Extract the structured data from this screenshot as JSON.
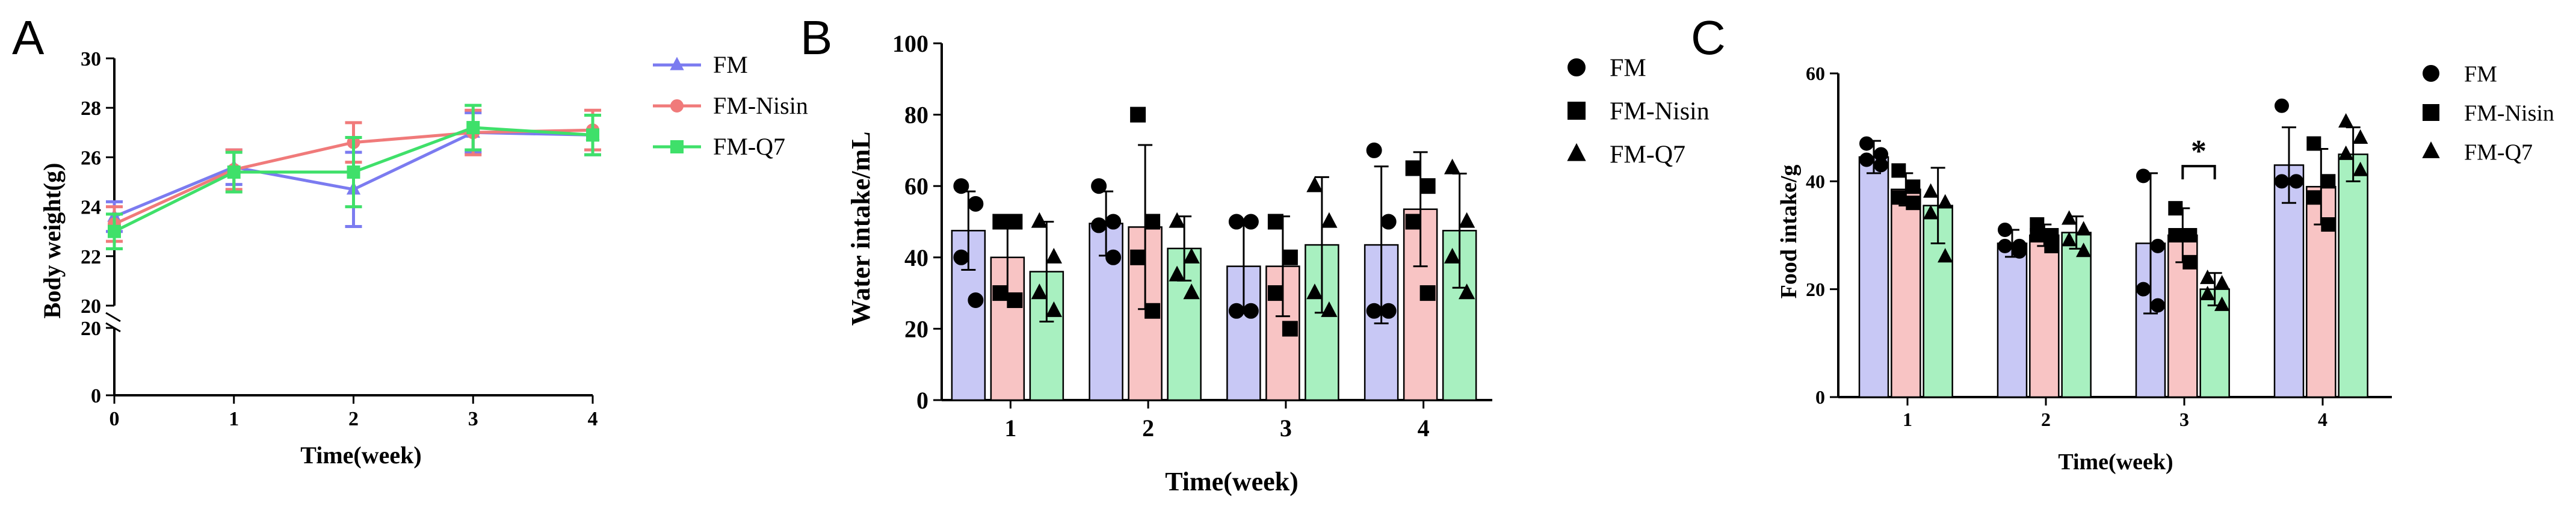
{
  "colors": {
    "FM": "#7b7bf0",
    "FM_Nisin": "#f07a7a",
    "FM_Q7": "#3fe06a",
    "FM_bar": "#c8c8f5",
    "FM_Nisin_bar": "#f8c4c4",
    "FM_Q7_bar": "#a8f0c0"
  },
  "chart_data": [
    {
      "panel": "A",
      "type": "line",
      "xlabel": "Time(week)",
      "ylabel": "Body weight(g)",
      "x": [
        0,
        1,
        2,
        3,
        4
      ],
      "x_ticks": [
        "0",
        "1",
        "2",
        "3",
        "4"
      ],
      "y_ticks_upper": [
        "20",
        "22",
        "24",
        "26",
        "28",
        "30"
      ],
      "y_ticks_lower": [
        "0",
        "20"
      ],
      "ylim_upper": [
        20,
        30
      ],
      "ylim_lower": [
        0,
        20
      ],
      "series": [
        {
          "name": "FM",
          "marker": "triangle",
          "values": [
            23.6,
            25.6,
            24.7,
            27.0,
            26.9
          ],
          "err": [
            0.6,
            0.7,
            1.5,
            0.8,
            0.8
          ]
        },
        {
          "name": "FM-Nisin",
          "marker": "circle",
          "values": [
            23.3,
            25.5,
            26.6,
            27.0,
            27.1
          ],
          "err": [
            0.7,
            0.8,
            0.8,
            0.9,
            0.8
          ]
        },
        {
          "name": "FM-Q7",
          "marker": "square",
          "values": [
            23.0,
            25.4,
            25.4,
            27.2,
            26.9
          ],
          "err": [
            0.7,
            0.8,
            1.4,
            0.9,
            0.8
          ]
        }
      ]
    },
    {
      "panel": "B",
      "type": "bar",
      "xlabel": "Time(week)",
      "ylabel": "Water intake/mL",
      "categories": [
        "1",
        "2",
        "3",
        "4"
      ],
      "y_ticks": [
        "0",
        "20",
        "40",
        "60",
        "80",
        "100"
      ],
      "ylim": [
        0,
        100
      ],
      "series": [
        {
          "name": "FM",
          "marker": "circle",
          "values": [
            47.5,
            49.5,
            37.5,
            43.5
          ],
          "err": [
            11,
            9,
            13,
            22
          ],
          "points": [
            [
              60,
              55,
              40,
              28
            ],
            [
              60,
              50,
              49,
              40
            ],
            [
              50,
              50,
              25,
              25
            ],
            [
              70,
              50,
              25,
              25
            ]
          ]
        },
        {
          "name": "FM-Nisin",
          "marker": "square",
          "values": [
            40,
            48.5,
            37.5,
            53.5
          ],
          "err": [
            11,
            23,
            14,
            16
          ],
          "points": [
            [
              50,
              50,
              30,
              28
            ],
            [
              80,
              50,
              40,
              25
            ],
            [
              50,
              40,
              30,
              20
            ],
            [
              65,
              60,
              50,
              30
            ]
          ]
        },
        {
          "name": "FM-Q7",
          "marker": "triangle",
          "values": [
            36,
            42.5,
            43.5,
            47.5
          ],
          "err": [
            14,
            9,
            19,
            16
          ],
          "points": [
            [
              50,
              40,
              30,
              25
            ],
            [
              50,
              40,
              35,
              30
            ],
            [
              60,
              50,
              30,
              25
            ],
            [
              65,
              50,
              40,
              30
            ]
          ]
        }
      ]
    },
    {
      "panel": "C",
      "type": "bar",
      "xlabel": "Time(week)",
      "ylabel": "Food intake/g",
      "categories": [
        "1",
        "2",
        "3",
        "4"
      ],
      "y_ticks": [
        "0",
        "20",
        "40",
        "60"
      ],
      "ylim": [
        0,
        60
      ],
      "significance": {
        "category": "3",
        "between": [
          "FM-Nisin",
          "FM-Q7"
        ],
        "label": "*"
      },
      "series": [
        {
          "name": "FM",
          "marker": "circle",
          "values": [
            44.5,
            28.5,
            28.5,
            43
          ],
          "err": [
            3,
            2.5,
            13,
            7
          ],
          "points": [
            [
              47,
              45,
              44,
              43
            ],
            [
              31,
              28,
              28,
              27
            ],
            [
              41,
              28,
              20,
              17
            ],
            [
              54,
              40,
              40,
              40
            ]
          ]
        },
        {
          "name": "FM-Nisin",
          "marker": "square",
          "values": [
            38.5,
            30,
            30,
            39
          ],
          "err": [
            3,
            2,
            5,
            7
          ],
          "points": [
            [
              42,
              39,
              37,
              36
            ],
            [
              32,
              30,
              30,
              28
            ],
            [
              35,
              30,
              30,
              25
            ],
            [
              47,
              40,
              37,
              32
            ]
          ]
        },
        {
          "name": "FM-Q7",
          "marker": "triangle",
          "values": [
            35.5,
            30.5,
            20,
            45
          ],
          "err": [
            7,
            3,
            3,
            5
          ],
          "points": [
            [
              38,
              36,
              34,
              26
            ],
            [
              33,
              31,
              29,
              27
            ],
            [
              22,
              21,
              19,
              17
            ],
            [
              51,
              48,
              45,
              42
            ]
          ]
        }
      ]
    }
  ]
}
